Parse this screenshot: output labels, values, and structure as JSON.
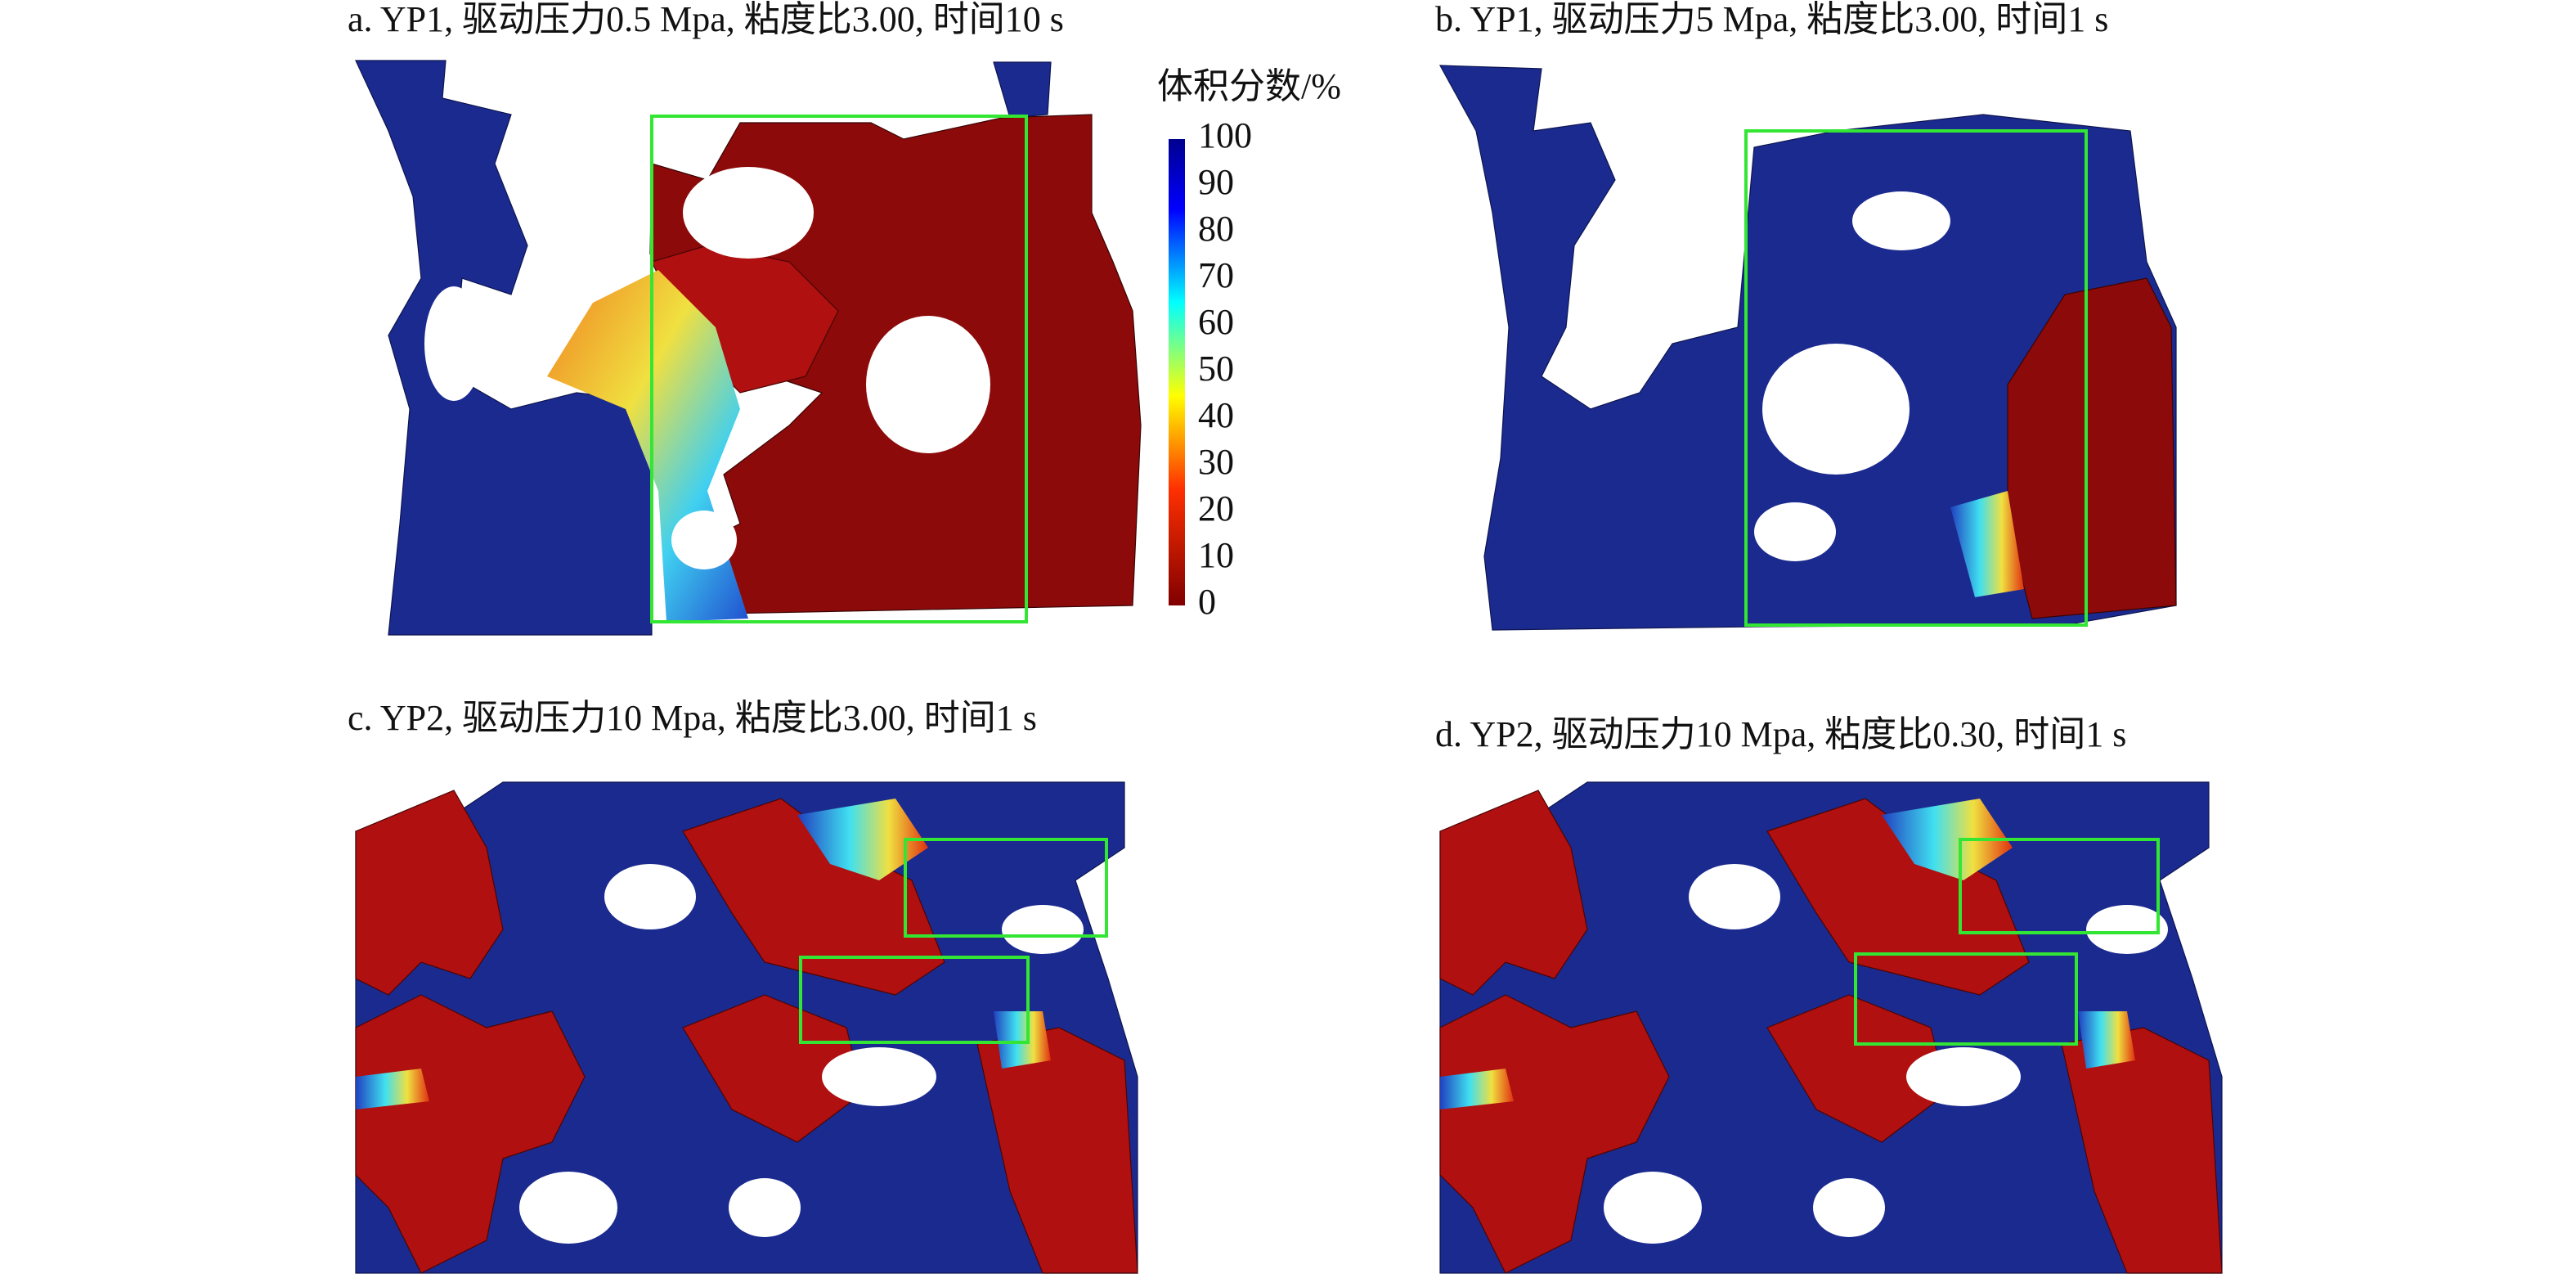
{
  "panels": [
    {
      "caption": "a. YP1, 驱动压力0.5 Mpa, 粘度比3.00, 时间10 s"
    },
    {
      "caption": "b. YP1, 驱动压力5 Mpa, 粘度比3.00, 时间1 s"
    },
    {
      "caption": "c. YP2, 驱动压力10 Mpa, 粘度比3.00, 时间1 s"
    },
    {
      "caption": "d. YP2, 驱动压力10 Mpa, 粘度比0.30, 时间1 s"
    }
  ],
  "colorbar": {
    "title": "体积分数/%",
    "ticks": [
      100,
      90,
      80,
      70,
      60,
      50,
      40,
      30,
      20,
      10,
      0
    ]
  }
}
